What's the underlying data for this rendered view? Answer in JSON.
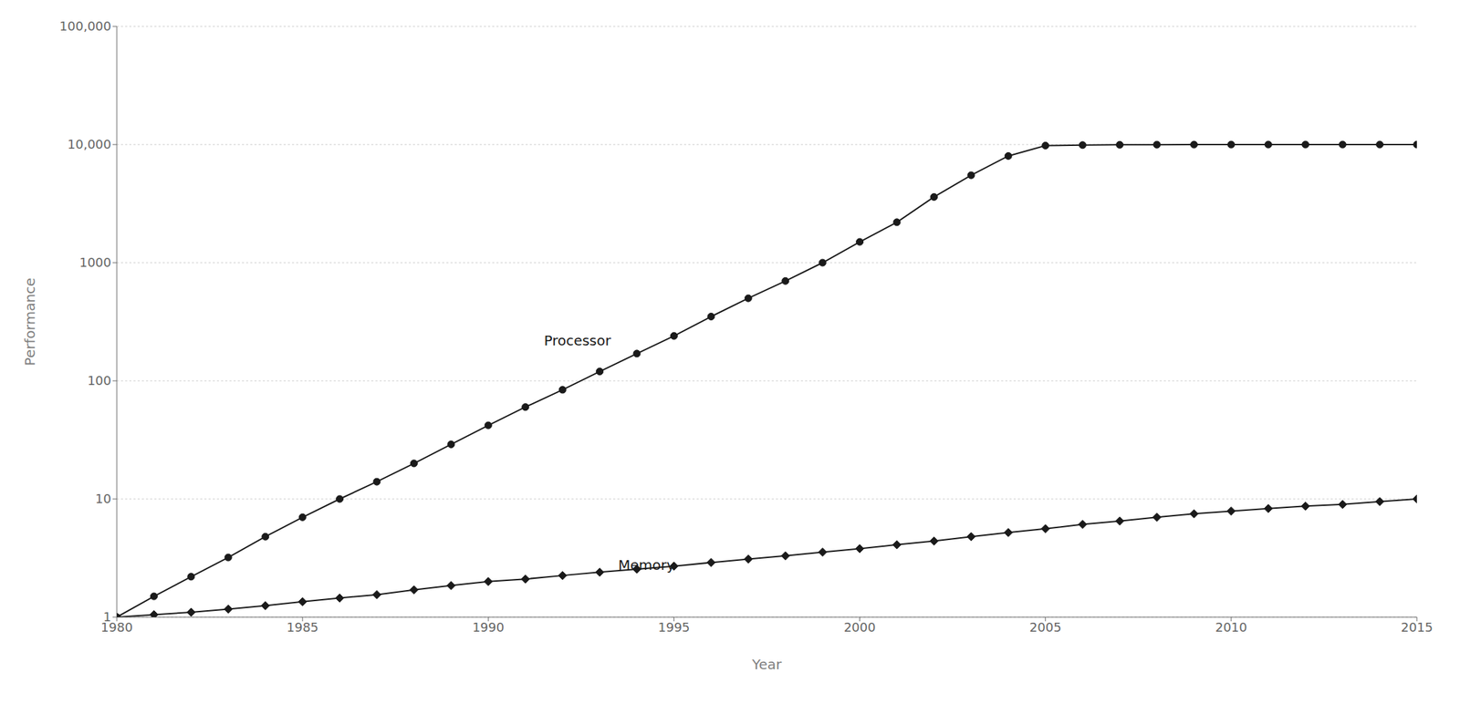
{
  "chart_data": {
    "type": "line",
    "xlabel": "Year",
    "ylabel": "Performance",
    "x": [
      1980,
      1981,
      1982,
      1983,
      1984,
      1985,
      1986,
      1987,
      1988,
      1989,
      1990,
      1991,
      1992,
      1993,
      1994,
      1995,
      1996,
      1997,
      1998,
      1999,
      2000,
      2001,
      2002,
      2003,
      2004,
      2005,
      2006,
      2007,
      2008,
      2009,
      2010,
      2011,
      2012,
      2013,
      2014,
      2015
    ],
    "series": [
      {
        "name": "Processor",
        "color": "#1a1a1a",
        "marker": "circle",
        "values": [
          1,
          1.5,
          2.2,
          3.2,
          4.8,
          7,
          10,
          14,
          20,
          29,
          42,
          60,
          84,
          120,
          170,
          240,
          350,
          500,
          700,
          1000,
          1500,
          2200,
          3600,
          5500,
          8000,
          9800,
          9900,
          9950,
          9980,
          9990,
          9995,
          9997,
          9998,
          9999,
          9999,
          10000
        ]
      },
      {
        "name": "Memory",
        "color": "#1a1a1a",
        "marker": "diamond",
        "values": [
          1,
          1.05,
          1.1,
          1.17,
          1.25,
          1.35,
          1.45,
          1.55,
          1.7,
          1.85,
          2.0,
          2.1,
          2.25,
          2.4,
          2.55,
          2.7,
          2.9,
          3.1,
          3.3,
          3.55,
          3.8,
          4.1,
          4.4,
          4.8,
          5.2,
          5.6,
          6.1,
          6.5,
          7.0,
          7.5,
          7.9,
          8.3,
          8.7,
          9.0,
          9.5,
          10.0
        ]
      }
    ],
    "xlim": [
      1980,
      2015
    ],
    "xticks": [
      1980,
      1985,
      1990,
      1995,
      2000,
      2005,
      2010,
      2015
    ],
    "ylim": [
      1,
      100000
    ],
    "yticks": [
      1,
      10,
      100,
      1000,
      {
        "value": 10000,
        "label": "10,000"
      },
      {
        "value": 100000,
        "label": "100,000"
      }
    ],
    "log": "y",
    "grid": "y",
    "annotations": [
      {
        "text": "Processor",
        "x": 1991.5,
        "y": 200
      },
      {
        "text": "Memory",
        "x": 1993.5,
        "y": 2.5
      }
    ]
  }
}
